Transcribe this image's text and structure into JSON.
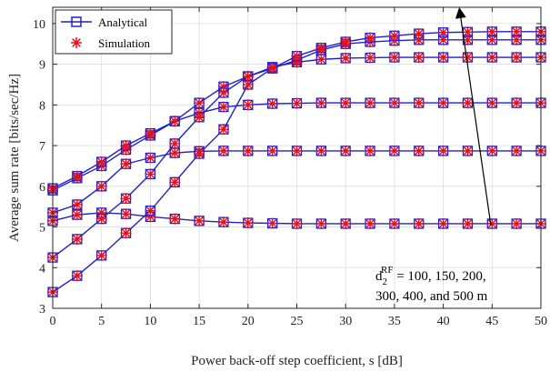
{
  "chart_data": {
    "type": "line",
    "xlabel": "Power back-off step coefficient, s [dB]",
    "ylabel": "Average sum rate  [bits/sec/Hz]",
    "xlim": [
      0,
      50
    ],
    "ylim": [
      3,
      10.4
    ],
    "xticks": [
      0,
      5,
      10,
      15,
      20,
      25,
      30,
      35,
      40,
      45,
      50
    ],
    "yticks": [
      3,
      4,
      5,
      6,
      7,
      8,
      9,
      10
    ],
    "grid": true,
    "legend_position": "top-left",
    "legend": [
      {
        "label": "Analytical",
        "marker": "square",
        "color": "#1f1fd6"
      },
      {
        "label": "Simulation",
        "marker": "asterisk",
        "color": "#e8101a"
      }
    ],
    "annotation": {
      "symbol": "d",
      "subscript": "2",
      "superscript": "RF",
      "line1": " = 100, 150, 200,",
      "line2": "300, 400, and 500 m"
    },
    "x": [
      0,
      2.5,
      5,
      7.5,
      10,
      12.5,
      15,
      17.5,
      20,
      22.5,
      25,
      27.5,
      30,
      32.5,
      35,
      37.5,
      40,
      42.5,
      45,
      47.5,
      50
    ],
    "series": [
      {
        "values": [
          5.15,
          5.3,
          5.35,
          5.32,
          5.25,
          5.2,
          5.15,
          5.12,
          5.1,
          5.09,
          5.08,
          5.08,
          5.08,
          5.08,
          5.08,
          5.08,
          5.08,
          5.08,
          5.08,
          5.08,
          5.08
        ]
      },
      {
        "values": [
          5.35,
          5.55,
          6.0,
          6.55,
          6.7,
          6.82,
          6.86,
          6.87,
          6.87,
          6.87,
          6.87,
          6.87,
          6.87,
          6.87,
          6.87,
          6.87,
          6.87,
          6.87,
          6.87,
          6.87,
          6.87
        ]
      },
      {
        "values": [
          5.9,
          6.2,
          6.5,
          6.9,
          7.25,
          7.6,
          7.8,
          7.95,
          8.0,
          8.03,
          8.04,
          8.05,
          8.05,
          8.05,
          8.05,
          8.05,
          8.05,
          8.05,
          8.05,
          8.05,
          8.05
        ]
      },
      {
        "values": [
          5.95,
          6.25,
          6.6,
          7.0,
          7.3,
          7.6,
          8.05,
          8.45,
          8.7,
          8.93,
          9.05,
          9.12,
          9.15,
          9.16,
          9.17,
          9.17,
          9.17,
          9.17,
          9.17,
          9.17,
          9.17
        ]
      },
      {
        "values": [
          4.25,
          4.7,
          5.2,
          5.7,
          6.3,
          7.05,
          7.7,
          8.3,
          8.7,
          8.9,
          9.1,
          9.35,
          9.5,
          9.55,
          9.58,
          9.6,
          9.6,
          9.6,
          9.6,
          9.6,
          9.6
        ]
      },
      {
        "values": [
          3.4,
          3.8,
          4.3,
          4.85,
          5.4,
          6.1,
          6.8,
          7.4,
          8.5,
          8.9,
          9.2,
          9.4,
          9.55,
          9.65,
          9.7,
          9.75,
          9.78,
          9.79,
          9.8,
          9.8,
          9.8
        ]
      }
    ]
  }
}
